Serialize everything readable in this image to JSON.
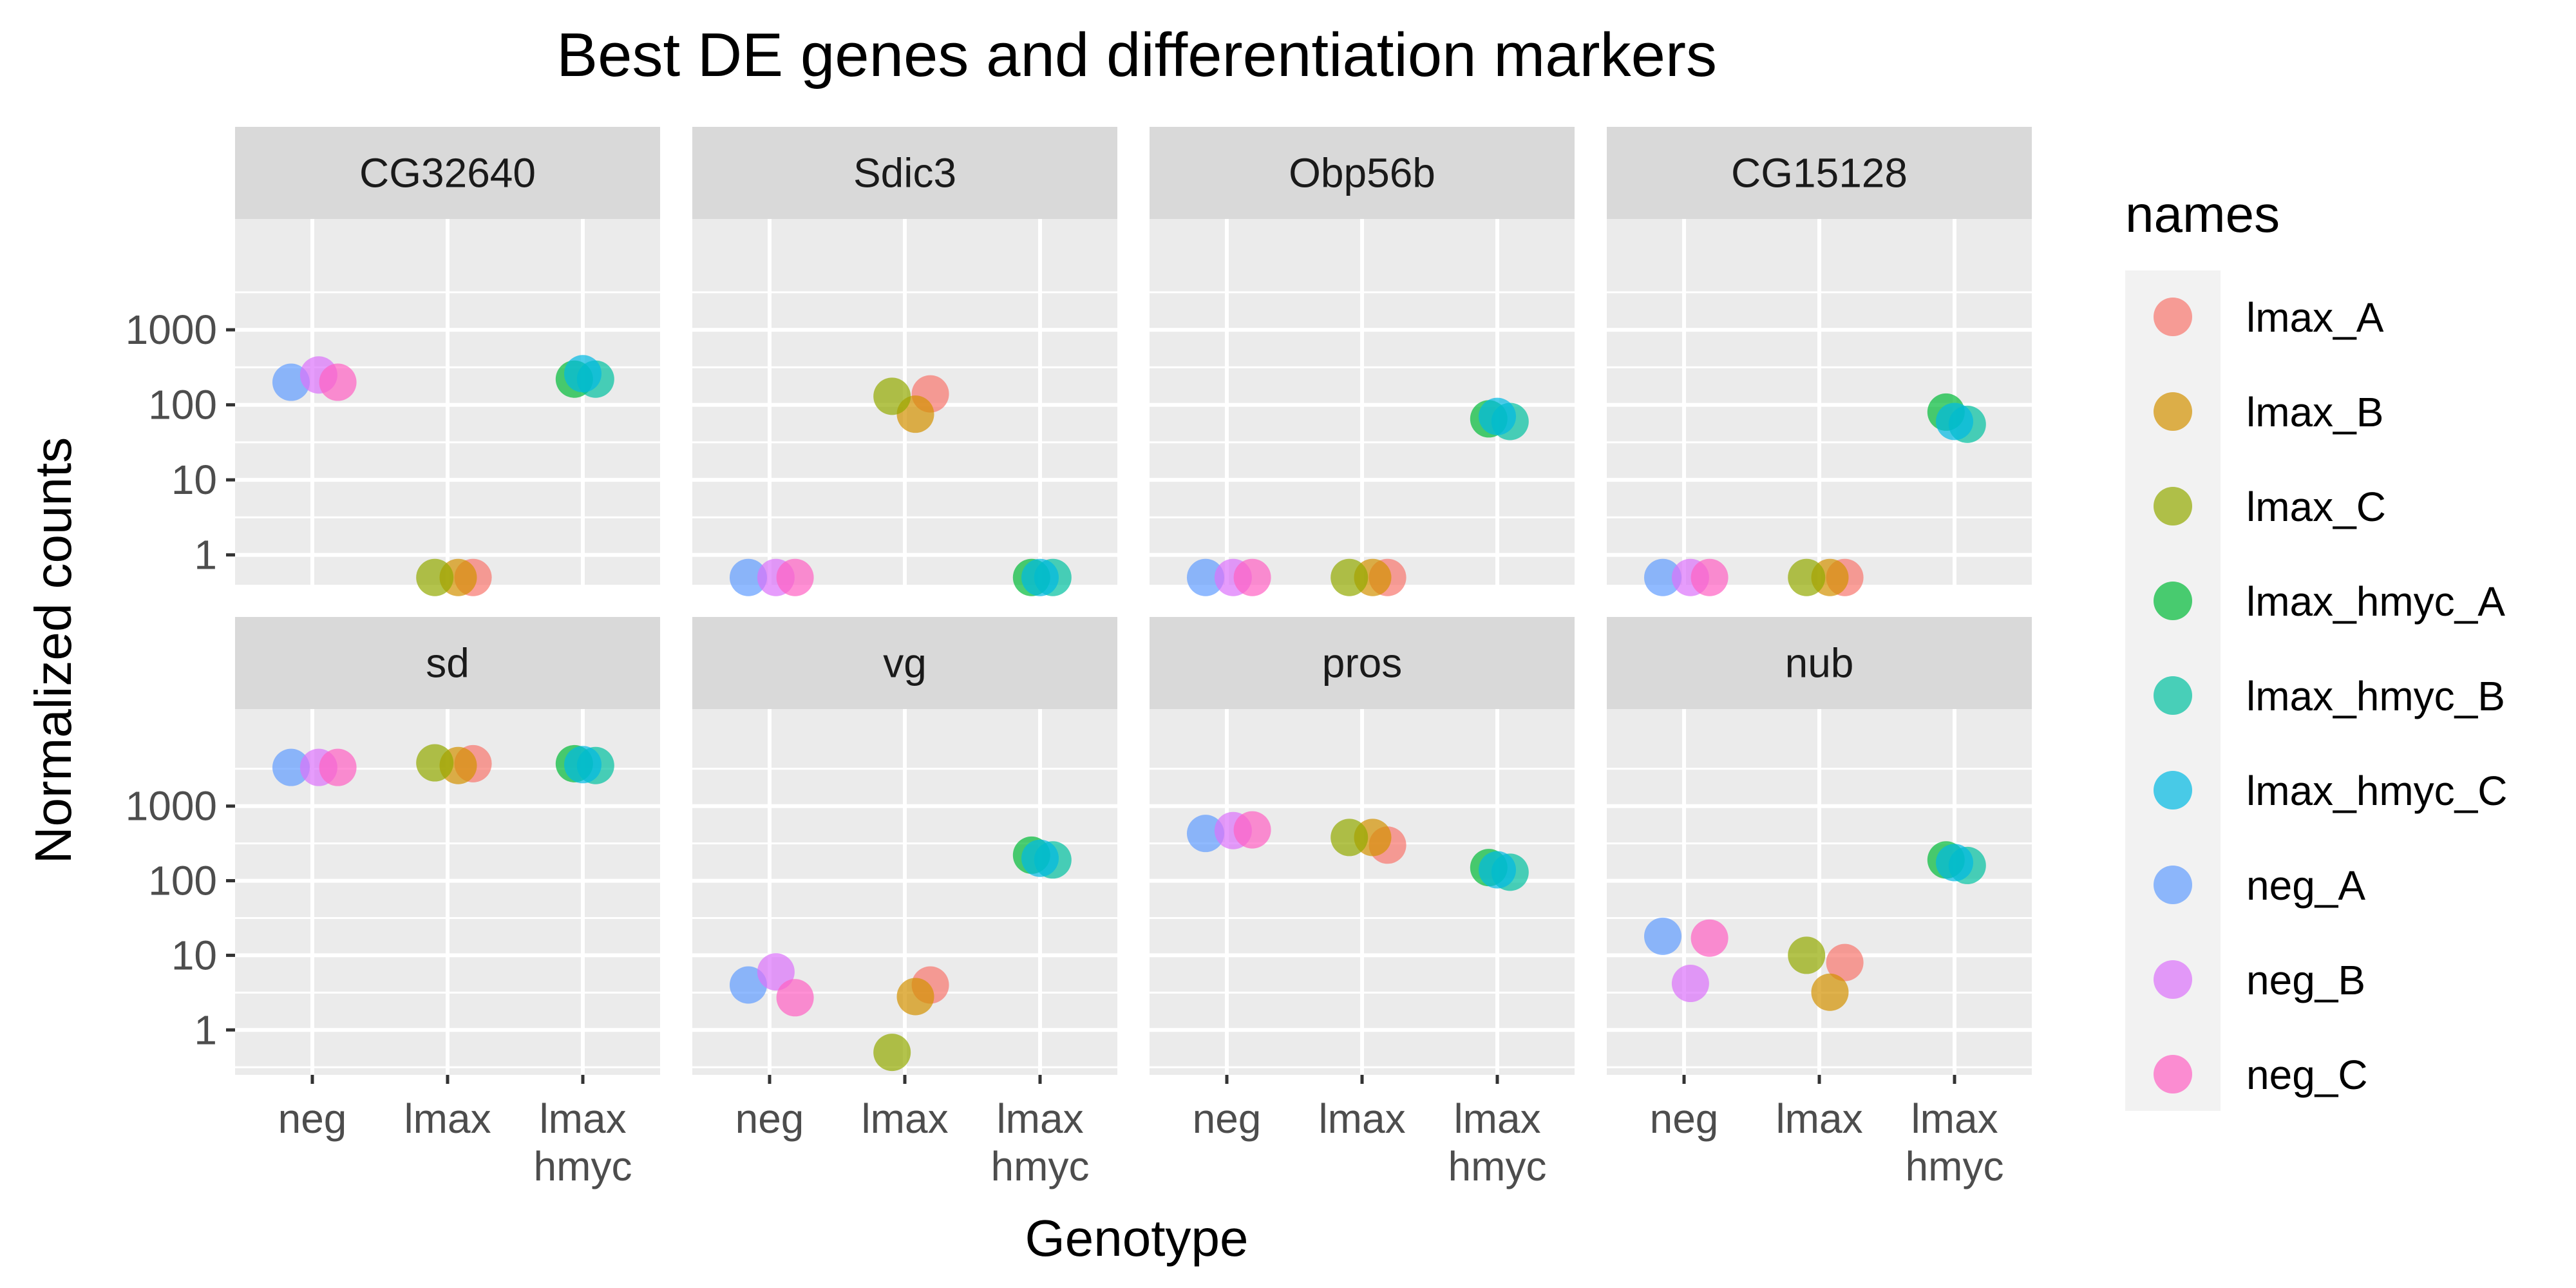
{
  "chart_data": {
    "type": "scatter",
    "title": "Best DE genes and differentiation markers",
    "xlabel": "Genotype",
    "ylabel": "Normalized counts",
    "x_categories": [
      [
        "neg"
      ],
      [
        "lmax"
      ],
      [
        "lmax",
        "hmyc"
      ]
    ],
    "y_scale": "log10",
    "y_ticks": [
      "1",
      "10",
      "100",
      "1000"
    ],
    "legend": {
      "title": "names",
      "placement": "right"
    },
    "series": [
      {
        "name": "lmax_A",
        "color": "#F8766D"
      },
      {
        "name": "lmax_B",
        "color": "#D39200"
      },
      {
        "name": "lmax_C",
        "color": "#93AA00"
      },
      {
        "name": "lmax_hmyc_A",
        "color": "#00BA38"
      },
      {
        "name": "lmax_hmyc_B",
        "color": "#00C19F"
      },
      {
        "name": "lmax_hmyc_C",
        "color": "#00B9E3"
      },
      {
        "name": "neg_A",
        "color": "#619CFF"
      },
      {
        "name": "neg_B",
        "color": "#DB72FB"
      },
      {
        "name": "neg_C",
        "color": "#FF61C3"
      }
    ],
    "panels": [
      {
        "gene": "CG32640",
        "ylim": [
          0.4,
          30000
        ],
        "values": {
          "neg_A": 200,
          "neg_B": 250,
          "neg_C": 200,
          "lmax_A": 0.5,
          "lmax_B": 0.5,
          "lmax_C": 0.5,
          "lmax_hmyc_A": 220,
          "lmax_hmyc_B": 220,
          "lmax_hmyc_C": 260
        }
      },
      {
        "gene": "Sdic3",
        "ylim": [
          0.4,
          30000
        ],
        "values": {
          "neg_A": 0.5,
          "neg_B": 0.5,
          "neg_C": 0.5,
          "lmax_A": 140,
          "lmax_B": 75,
          "lmax_C": 130,
          "lmax_hmyc_A": 0.5,
          "lmax_hmyc_B": 0.5,
          "lmax_hmyc_C": 0.5
        }
      },
      {
        "gene": "Obp56b",
        "ylim": [
          0.4,
          30000
        ],
        "values": {
          "neg_A": 0.5,
          "neg_B": 0.5,
          "neg_C": 0.5,
          "lmax_A": 0.5,
          "lmax_B": 0.5,
          "lmax_C": 0.5,
          "lmax_hmyc_A": 65,
          "lmax_hmyc_B": 60,
          "lmax_hmyc_C": 70
        }
      },
      {
        "gene": "CG15128",
        "ylim": [
          0.4,
          30000
        ],
        "values": {
          "neg_A": 0.5,
          "neg_B": 0.5,
          "neg_C": 0.5,
          "lmax_A": 0.5,
          "lmax_B": 0.5,
          "lmax_C": 0.5,
          "lmax_hmyc_A": 80,
          "lmax_hmyc_B": 55,
          "lmax_hmyc_C": 60
        }
      },
      {
        "gene": "sd",
        "ylim": [
          0.25,
          20000
        ],
        "values": {
          "neg_A": 3300,
          "neg_B": 3300,
          "neg_C": 3300,
          "lmax_A": 3700,
          "lmax_B": 3500,
          "lmax_C": 3800,
          "lmax_hmyc_A": 3700,
          "lmax_hmyc_B": 3500,
          "lmax_hmyc_C": 3600
        }
      },
      {
        "gene": "vg",
        "ylim": [
          0.25,
          20000
        ],
        "values": {
          "neg_A": 4,
          "neg_B": 6,
          "neg_C": 2.7,
          "lmax_A": 4,
          "lmax_B": 2.8,
          "lmax_C": 0.5,
          "lmax_hmyc_A": 220,
          "lmax_hmyc_B": 190,
          "lmax_hmyc_C": 200
        }
      },
      {
        "gene": "pros",
        "ylim": [
          0.25,
          20000
        ],
        "values": {
          "neg_A": 430,
          "neg_B": 470,
          "neg_C": 480,
          "lmax_A": 300,
          "lmax_B": 380,
          "lmax_C": 380,
          "lmax_hmyc_A": 150,
          "lmax_hmyc_B": 130,
          "lmax_hmyc_C": 140
        }
      },
      {
        "gene": "nub",
        "ylim": [
          0.25,
          20000
        ],
        "values": {
          "neg_A": 18,
          "neg_B": 4.2,
          "neg_C": 17,
          "lmax_A": 8,
          "lmax_B": 3.2,
          "lmax_C": 10,
          "lmax_hmyc_A": 190,
          "lmax_hmyc_B": 160,
          "lmax_hmyc_C": 175
        }
      }
    ]
  }
}
